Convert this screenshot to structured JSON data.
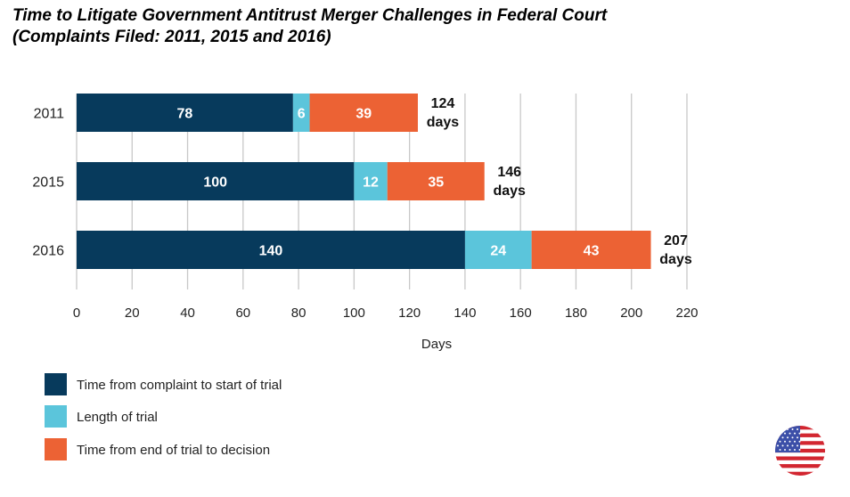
{
  "chart_data": {
    "type": "bar",
    "orientation": "horizontal",
    "stacked": true,
    "title": "Time to Litigate Government Antitrust Merger Challenges in Federal Court",
    "subtitle": "(Complaints Filed: 2011, 2015 and 2016)",
    "xlabel": "Days",
    "ylabel": "",
    "xlim": [
      0,
      220
    ],
    "xticks": [
      0,
      20,
      40,
      60,
      80,
      100,
      120,
      140,
      160,
      180,
      200,
      220
    ],
    "grid": true,
    "categories": [
      "2011",
      "2015",
      "2016"
    ],
    "series": [
      {
        "name": "Time from complaint to start of trial",
        "values": [
          78,
          100,
          140
        ],
        "color": "#073a5c"
      },
      {
        "name": "Length of trial",
        "values": [
          6,
          12,
          24
        ],
        "color": "#5bc5db"
      },
      {
        "name": "Time from end of trial to decision",
        "values": [
          39,
          35,
          43
        ],
        "color": "#ec6234"
      }
    ],
    "totals": [
      {
        "value": "124",
        "unit": "days"
      },
      {
        "value": "146",
        "unit": "days"
      },
      {
        "value": "207",
        "unit": "days"
      }
    ],
    "legend_position": "bottom-left"
  },
  "flag_icon": "us-flag-icon"
}
